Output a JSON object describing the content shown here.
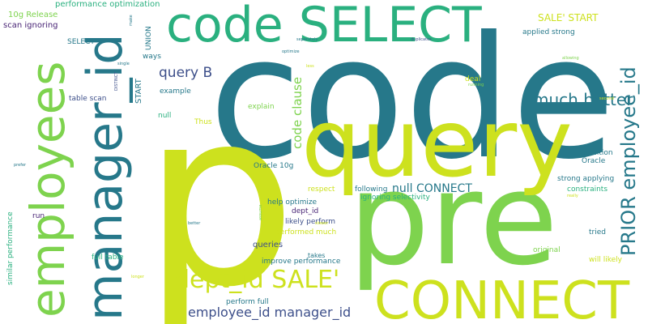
{
  "palette": {
    "teal": "#26788a",
    "green": "#2ab07f",
    "lime": "#cde11e",
    "leaf": "#7ed34e",
    "navy": "#3d4f8a",
    "purple": "#482475",
    "seafoam": "#27ad81",
    "pale": "#b5de2b"
  },
  "words": [
    {
      "id": "code-big",
      "text": "code"
    },
    {
      "id": "p-big",
      "text": "p"
    },
    {
      "id": "pre",
      "text": "pre"
    },
    {
      "id": "query-big",
      "text": "query"
    },
    {
      "id": "code-select",
      "text": "code SELECT"
    },
    {
      "id": "manager-id",
      "text": "manager_id"
    },
    {
      "id": "employees",
      "text": "employees"
    },
    {
      "id": "connect-big",
      "text": "CONNECT"
    },
    {
      "id": "dept-id-sale",
      "text": "dept_id SALE'"
    },
    {
      "id": "much-better",
      "text": "much better"
    },
    {
      "id": "prior-employee-id",
      "text": "PRIOR employee_id"
    },
    {
      "id": "employee-id-manager-id",
      "text": "employee_id manager_id"
    },
    {
      "id": "query-b",
      "text": "query B"
    },
    {
      "id": "code-clause",
      "text": "code clause"
    },
    {
      "id": "null-connect",
      "text": "null CONNECT"
    },
    {
      "id": "sale-start",
      "text": "SALE' START"
    },
    {
      "id": "performance-optimization",
      "text": "performance optimization"
    },
    {
      "id": "release-10g",
      "text": "10g Release"
    },
    {
      "id": "scan-ignoring",
      "text": "scan ignoring"
    },
    {
      "id": "select-small",
      "text": "SELECT"
    },
    {
      "id": "union",
      "text": "UNION"
    },
    {
      "id": "ways",
      "text": "ways"
    },
    {
      "id": "start",
      "text": "START"
    },
    {
      "id": "example",
      "text": "example"
    },
    {
      "id": "table-scan",
      "text": "table scan"
    },
    {
      "id": "explain",
      "text": "explain"
    },
    {
      "id": "null-small",
      "text": "null"
    },
    {
      "id": "thus",
      "text": "Thus"
    },
    {
      "id": "applied-strong",
      "text": "applied strong"
    },
    {
      "id": "deal",
      "text": "deal"
    },
    {
      "id": "condition",
      "text": "condition"
    },
    {
      "id": "oracle",
      "text": "Oracle"
    },
    {
      "id": "strong-applying",
      "text": "strong applying"
    },
    {
      "id": "constraints",
      "text": "constraints"
    },
    {
      "id": "oracle-10g",
      "text": "Oracle 10g"
    },
    {
      "id": "respect",
      "text": "respect"
    },
    {
      "id": "help-optimize",
      "text": "help optimize"
    },
    {
      "id": "dept-id-small",
      "text": "dept_id"
    },
    {
      "id": "likely-perform",
      "text": "likely perform"
    },
    {
      "id": "performed-much",
      "text": "performed much"
    },
    {
      "id": "following",
      "text": "following"
    },
    {
      "id": "ignoring-selectivity",
      "text": "ignoring selectivity"
    },
    {
      "id": "queries",
      "text": "queries"
    },
    {
      "id": "takes",
      "text": "takes"
    },
    {
      "id": "improve-performance",
      "text": "improve performance"
    },
    {
      "id": "full-table",
      "text": "full table"
    },
    {
      "id": "perform-full",
      "text": "perform full"
    },
    {
      "id": "similar-performance",
      "text": "similar performance"
    },
    {
      "id": "run",
      "text": "run"
    },
    {
      "id": "tried",
      "text": "tried"
    },
    {
      "id": "original",
      "text": "original"
    },
    {
      "id": "will-likely",
      "text": "will likely"
    },
    {
      "id": "separately",
      "text": "separately"
    },
    {
      "id": "duplicates",
      "text": "duplicates"
    },
    {
      "id": "resulting",
      "text": "resulting"
    },
    {
      "id": "allowing",
      "text": "allowing"
    },
    {
      "id": "second",
      "text": "second"
    },
    {
      "id": "less",
      "text": "less"
    },
    {
      "id": "running",
      "text": "running"
    },
    {
      "id": "single",
      "text": "single"
    },
    {
      "id": "distinct",
      "text": "DISTINCT"
    },
    {
      "id": "make",
      "text": "make"
    },
    {
      "id": "prefer",
      "text": "prefer"
    },
    {
      "id": "better",
      "text": "better"
    },
    {
      "id": "slower",
      "text": "slower"
    },
    {
      "id": "assume",
      "text": "assume"
    },
    {
      "id": "optimize",
      "text": "optimize"
    },
    {
      "id": "really",
      "text": "really"
    },
    {
      "id": "longer",
      "text": "longer"
    }
  ]
}
